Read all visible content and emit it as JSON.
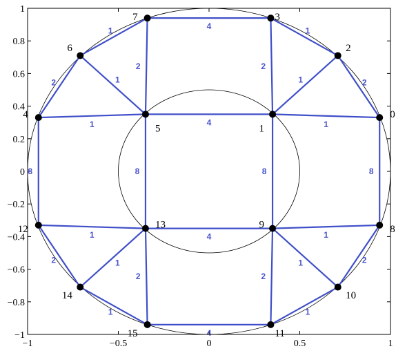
{
  "chart_data": {
    "type": "scatter",
    "xlim": [
      -1,
      1
    ],
    "ylim": [
      -1,
      1
    ],
    "x_ticks": [
      {
        "value": -1,
        "label": "−1"
      },
      {
        "value": -0.5,
        "label": "−0.5"
      },
      {
        "value": 0,
        "label": "0"
      },
      {
        "value": 0.5,
        "label": "0.5"
      },
      {
        "value": 1,
        "label": "1"
      }
    ],
    "y_ticks": [
      {
        "value": 1,
        "label": "1"
      },
      {
        "value": 0.8,
        "label": "0.8"
      },
      {
        "value": 0.6,
        "label": "0.6"
      },
      {
        "value": 0.4,
        "label": "0.4"
      },
      {
        "value": 0.2,
        "label": "0.2"
      },
      {
        "value": 0,
        "label": "0"
      },
      {
        "value": -0.2,
        "label": "−0.2"
      },
      {
        "value": -0.4,
        "label": "−0.4"
      },
      {
        "value": -0.6,
        "label": "−0.6"
      },
      {
        "value": -0.8,
        "label": "−0.8"
      },
      {
        "value": -1,
        "label": "−1"
      }
    ],
    "circles": [
      {
        "cx": 0,
        "cy": 0,
        "r": 1
      },
      {
        "cx": 0,
        "cy": 0,
        "r": 0.5
      }
    ],
    "nodes": [
      {
        "id": "0",
        "x": 0.94,
        "y": 0.33
      },
      {
        "id": "1",
        "x": 0.35,
        "y": 0.35
      },
      {
        "id": "2",
        "x": 0.71,
        "y": 0.71
      },
      {
        "id": "3",
        "x": 0.34,
        "y": 0.94
      },
      {
        "id": "4",
        "x": -0.94,
        "y": 0.33
      },
      {
        "id": "5",
        "x": -0.35,
        "y": 0.35
      },
      {
        "id": "6",
        "x": -0.71,
        "y": 0.71
      },
      {
        "id": "7",
        "x": -0.34,
        "y": 0.94
      },
      {
        "id": "8",
        "x": 0.94,
        "y": -0.33
      },
      {
        "id": "9",
        "x": 0.35,
        "y": -0.35
      },
      {
        "id": "10",
        "x": 0.71,
        "y": -0.71
      },
      {
        "id": "11",
        "x": 0.34,
        "y": -0.94
      },
      {
        "id": "12",
        "x": -0.94,
        "y": -0.33
      },
      {
        "id": "13",
        "x": -0.35,
        "y": -0.35
      },
      {
        "id": "14",
        "x": -0.71,
        "y": -0.71
      },
      {
        "id": "15",
        "x": -0.34,
        "y": -0.94
      }
    ],
    "edges": [
      {
        "from": "7",
        "to": "3",
        "weight": "4"
      },
      {
        "from": "5",
        "to": "1",
        "weight": "4"
      },
      {
        "from": "13",
        "to": "9",
        "weight": "4"
      },
      {
        "from": "15",
        "to": "11",
        "weight": "4"
      },
      {
        "from": "4",
        "to": "12",
        "weight": "8"
      },
      {
        "from": "5",
        "to": "13",
        "weight": "8"
      },
      {
        "from": "1",
        "to": "9",
        "weight": "8"
      },
      {
        "from": "0",
        "to": "8",
        "weight": "8"
      },
      {
        "from": "6",
        "to": "7",
        "weight": "1"
      },
      {
        "from": "3",
        "to": "2",
        "weight": "1"
      },
      {
        "from": "6",
        "to": "5",
        "weight": "1"
      },
      {
        "from": "1",
        "to": "2",
        "weight": "1"
      },
      {
        "from": "4",
        "to": "5",
        "weight": "1"
      },
      {
        "from": "1",
        "to": "0",
        "weight": "1"
      },
      {
        "from": "12",
        "to": "13",
        "weight": "1"
      },
      {
        "from": "9",
        "to": "8",
        "weight": "1"
      },
      {
        "from": "14",
        "to": "13",
        "weight": "1"
      },
      {
        "from": "9",
        "to": "10",
        "weight": "1"
      },
      {
        "from": "14",
        "to": "15",
        "weight": "1"
      },
      {
        "from": "11",
        "to": "10",
        "weight": "1"
      },
      {
        "from": "4",
        "to": "6",
        "weight": "2"
      },
      {
        "from": "7",
        "to": "5",
        "weight": "2"
      },
      {
        "from": "3",
        "to": "1",
        "weight": "2"
      },
      {
        "from": "2",
        "to": "0",
        "weight": "2"
      },
      {
        "from": "12",
        "to": "14",
        "weight": "2"
      },
      {
        "from": "13",
        "to": "15",
        "weight": "2"
      },
      {
        "from": "9",
        "to": "11",
        "weight": "2"
      },
      {
        "from": "8",
        "to": "10",
        "weight": "2"
      }
    ]
  }
}
